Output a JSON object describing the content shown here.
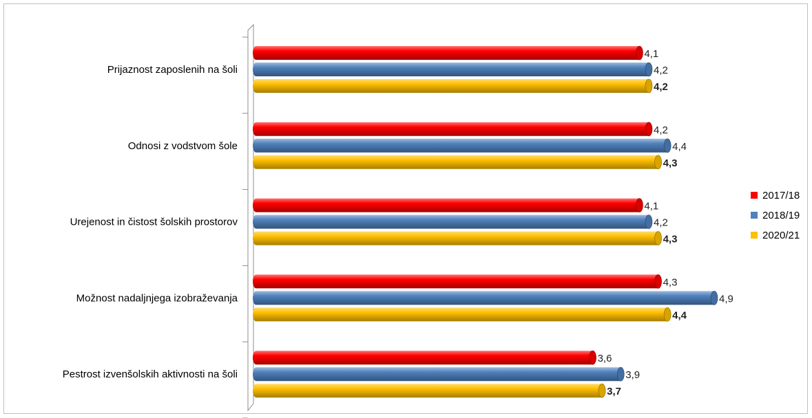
{
  "chart_data": {
    "type": "bar",
    "orientation": "horizontal",
    "categories": [
      "Prijaznost zaposlenih na šoli",
      "Odnosi z vodstvom šole",
      "Urejenost in čistost šolskih prostorov",
      "Možnost nadaljnjega izobraževanja",
      "Pestrost izvenšolskih aktivnosti na šoli"
    ],
    "series": [
      {
        "name": "2017/18",
        "color": "#ff0000",
        "values": [
          4.1,
          4.2,
          4.1,
          4.3,
          3.6
        ],
        "labels": [
          "4,1",
          "4,2",
          "4,1",
          "4,3",
          "3,6"
        ],
        "label_bold": false
      },
      {
        "name": "2018/19",
        "color": "#4f81bd",
        "values": [
          4.2,
          4.4,
          4.2,
          4.9,
          3.9
        ],
        "labels": [
          "4,2",
          "4,4",
          "4,2",
          "4,9",
          "3,9"
        ],
        "label_bold": false
      },
      {
        "name": "2020/21",
        "color": "#ffc000",
        "values": [
          4.2,
          4.3,
          4.3,
          4.4,
          3.7
        ],
        "labels": [
          "4,2",
          "4,3",
          "4,3",
          "4,4",
          "3,7"
        ],
        "label_bold": true
      }
    ],
    "xlim": [
      0,
      5
    ],
    "grid": false,
    "legend": "right",
    "style": "3d-cylinder"
  }
}
